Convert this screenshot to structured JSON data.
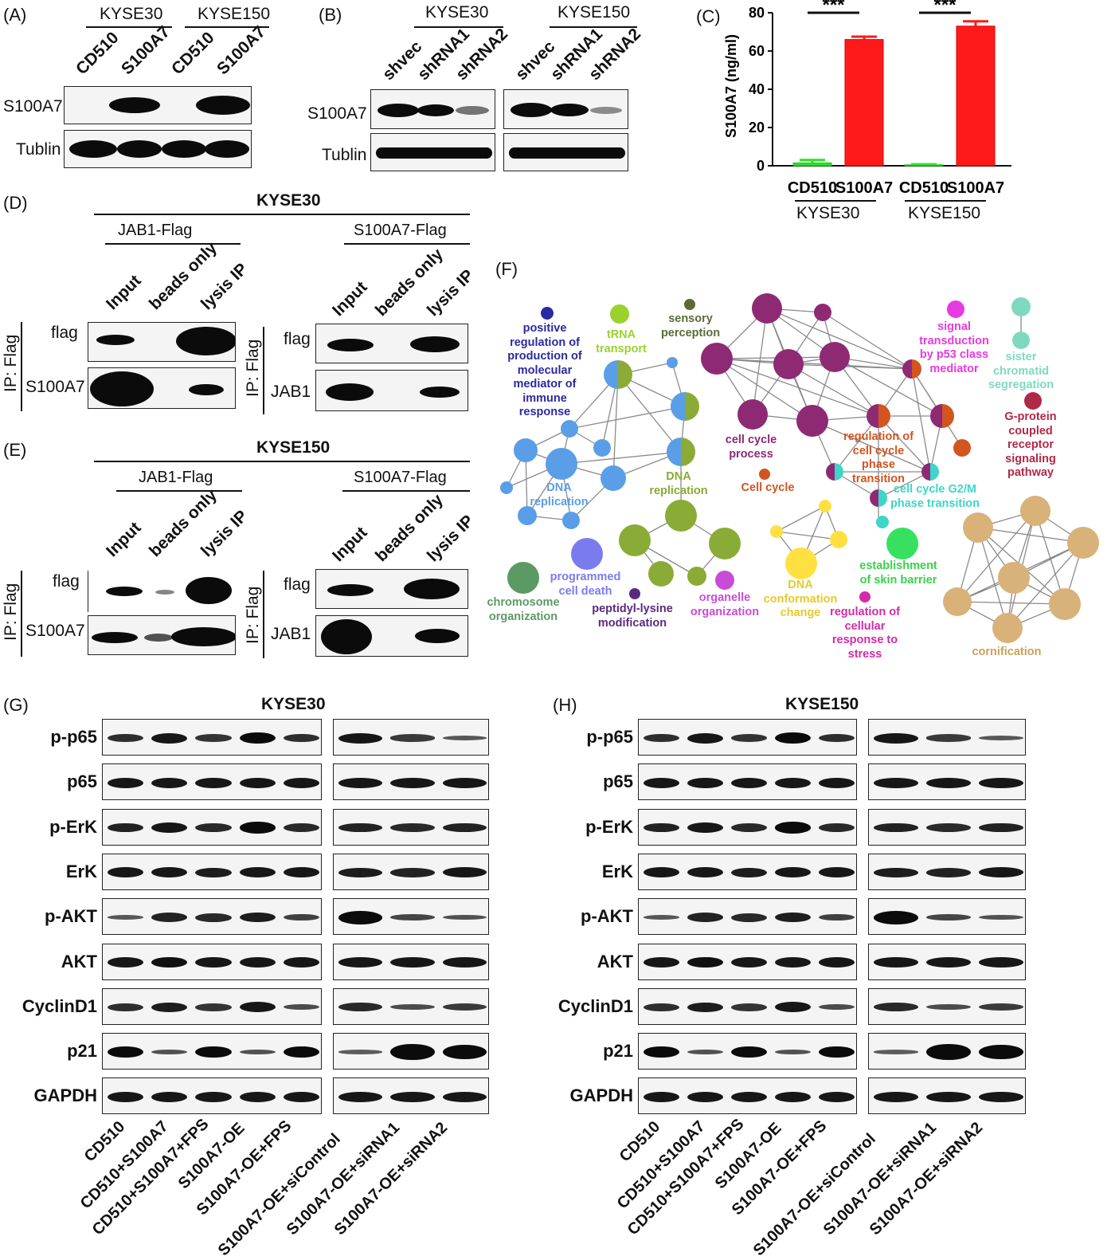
{
  "panels": {
    "A": {
      "tag": "(A)",
      "groups": [
        "KYSE30",
        "KYSE150"
      ],
      "lanes": [
        "CD510",
        "S100A7",
        "CD510",
        "S100A7"
      ],
      "rows": [
        "S100A7",
        "Tublin"
      ]
    },
    "B": {
      "tag": "(B)",
      "groups": [
        "KYSE30",
        "KYSE150"
      ],
      "lanes": [
        "shvec",
        "shRNA1",
        "shRNA2",
        "shvec",
        "shRNA1",
        "shRNA2"
      ],
      "rows": [
        "S100A7",
        "Tublin"
      ]
    },
    "C": {
      "tag": "(C)",
      "sig": "***"
    },
    "D": {
      "tag": "(D)",
      "cell": "KYSE30",
      "groups": [
        "JAB1-Flag",
        "S100A7-Flag"
      ],
      "lanes": [
        "Input",
        "beads only",
        "lysis IP"
      ],
      "ip": "IP: Flag",
      "rows_left": [
        "flag",
        "S100A7"
      ],
      "rows_right": [
        "flag",
        "JAB1"
      ]
    },
    "E": {
      "tag": "(E)",
      "cell": "KYSE150",
      "groups": [
        "JAB1-Flag",
        "S100A7-Flag"
      ],
      "lanes": [
        "Input",
        "beads only",
        "lysis IP"
      ],
      "ip": "IP: Flag",
      "rows_left": [
        "flag",
        "S100A7"
      ],
      "rows_right": [
        "flag",
        "JAB1"
      ]
    },
    "F": {
      "tag": "(F)",
      "terms": [
        {
          "text": "positive regulation of production of molecular mediator of immune response",
          "color": "#2a2aa0"
        },
        {
          "text": "tRNA transport",
          "color": "#9ad12e"
        },
        {
          "text": "sensory perception",
          "color": "#5b6b35"
        },
        {
          "text": "signal transduction by p53 class mediator",
          "color": "#e63be0"
        },
        {
          "text": "sister chromatid segregation",
          "color": "#7fd9c0"
        },
        {
          "text": "G-protein coupled receptor signaling pathway",
          "color": "#b02a45"
        },
        {
          "text": "cell cycle process",
          "color": "#8e2a74"
        },
        {
          "text": "regulation of cell cycle phase transition",
          "color": "#d2541f"
        },
        {
          "text": "Cell cycle",
          "color": "#d2541f"
        },
        {
          "text": "cell cycle G2/M phase transition",
          "color": "#3ed6c8"
        },
        {
          "text": "DNA replication",
          "color": "#5a9ee8"
        },
        {
          "text": "DNA replication",
          "color": "#8aab36"
        },
        {
          "text": "programmed cell death",
          "color": "#7b7bf0"
        },
        {
          "text": "chromosome organization",
          "color": "#5c9a64"
        },
        {
          "text": "peptidyl-lysine modification",
          "color": "#5a2a80"
        },
        {
          "text": "organelle organization",
          "color": "#c94cd6"
        },
        {
          "text": "DNA conformation change",
          "color": "#e7c92a"
        },
        {
          "text": "regulation of cellular response to stress",
          "color": "#d42aa8"
        },
        {
          "text": "establishment of skin barrier",
          "color": "#38d24a"
        },
        {
          "text": "cornification",
          "color": "#c9a15c"
        }
      ]
    },
    "G": {
      "tag": "(G)",
      "cell": "KYSE30",
      "rows": [
        "p-p65",
        "p65",
        "p-ErK",
        "ErK",
        "p-AKT",
        "AKT",
        "CyclinD1",
        "p21",
        "GAPDH"
      ],
      "lanes": [
        "CD510",
        "CD510+S100A7",
        "CD510+S100A7+FPS",
        "S100A7-OE",
        "S100A7-OE+FPS",
        "S100A7-OE+siControl",
        "S100A7-OE+siRNA1",
        "S100A7-OE+siRNA2"
      ]
    },
    "H": {
      "tag": "(H)",
      "cell": "KYSE150",
      "rows": [
        "p-p65",
        "p65",
        "p-ErK",
        "ErK",
        "p-AKT",
        "AKT",
        "CyclinD1",
        "p21",
        "GAPDH"
      ],
      "lanes": [
        "CD510",
        "CD510+S100A7",
        "CD510+S100A7+FPS",
        "S100A7-OE",
        "S100A7-OE+FPS",
        "S100A7-OE+siControl",
        "S100A7-OE+siRNA1",
        "S100A7-OE+siRNA2"
      ]
    }
  },
  "chart_data": {
    "type": "bar",
    "ylabel": "S100A7 (ng/ml)",
    "ylim": [
      0,
      80
    ],
    "yticks": [
      0,
      20,
      40,
      60,
      80
    ],
    "categories": [
      "CD510",
      "S100A7",
      "CD510",
      "S100A7"
    ],
    "groups": [
      "KYSE30",
      "KYSE150"
    ],
    "values": [
      1.5,
      66,
      0.5,
      73
    ],
    "errors": [
      1.5,
      1.5,
      0.3,
      2.5
    ],
    "colors": [
      "#2ee02e",
      "#ff1a1a",
      "#2ee02e",
      "#ff1a1a"
    ],
    "significance": [
      "***",
      "***"
    ]
  }
}
